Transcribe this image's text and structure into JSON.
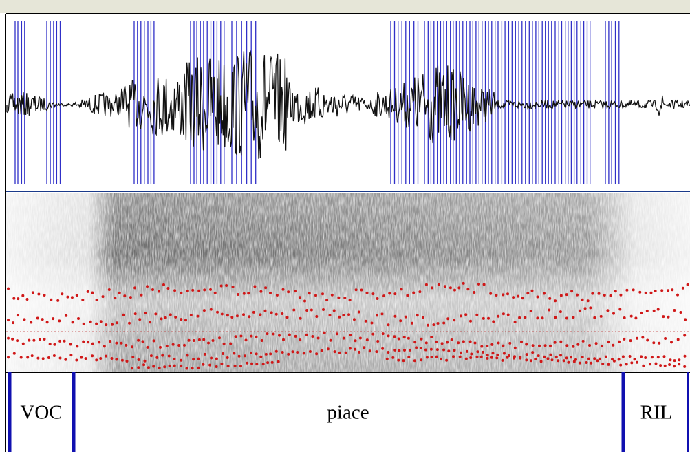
{
  "tier": {
    "intervals": [
      {
        "label": "VOC"
      },
      {
        "label": "piace"
      },
      {
        "label": "RIL"
      }
    ]
  }
}
